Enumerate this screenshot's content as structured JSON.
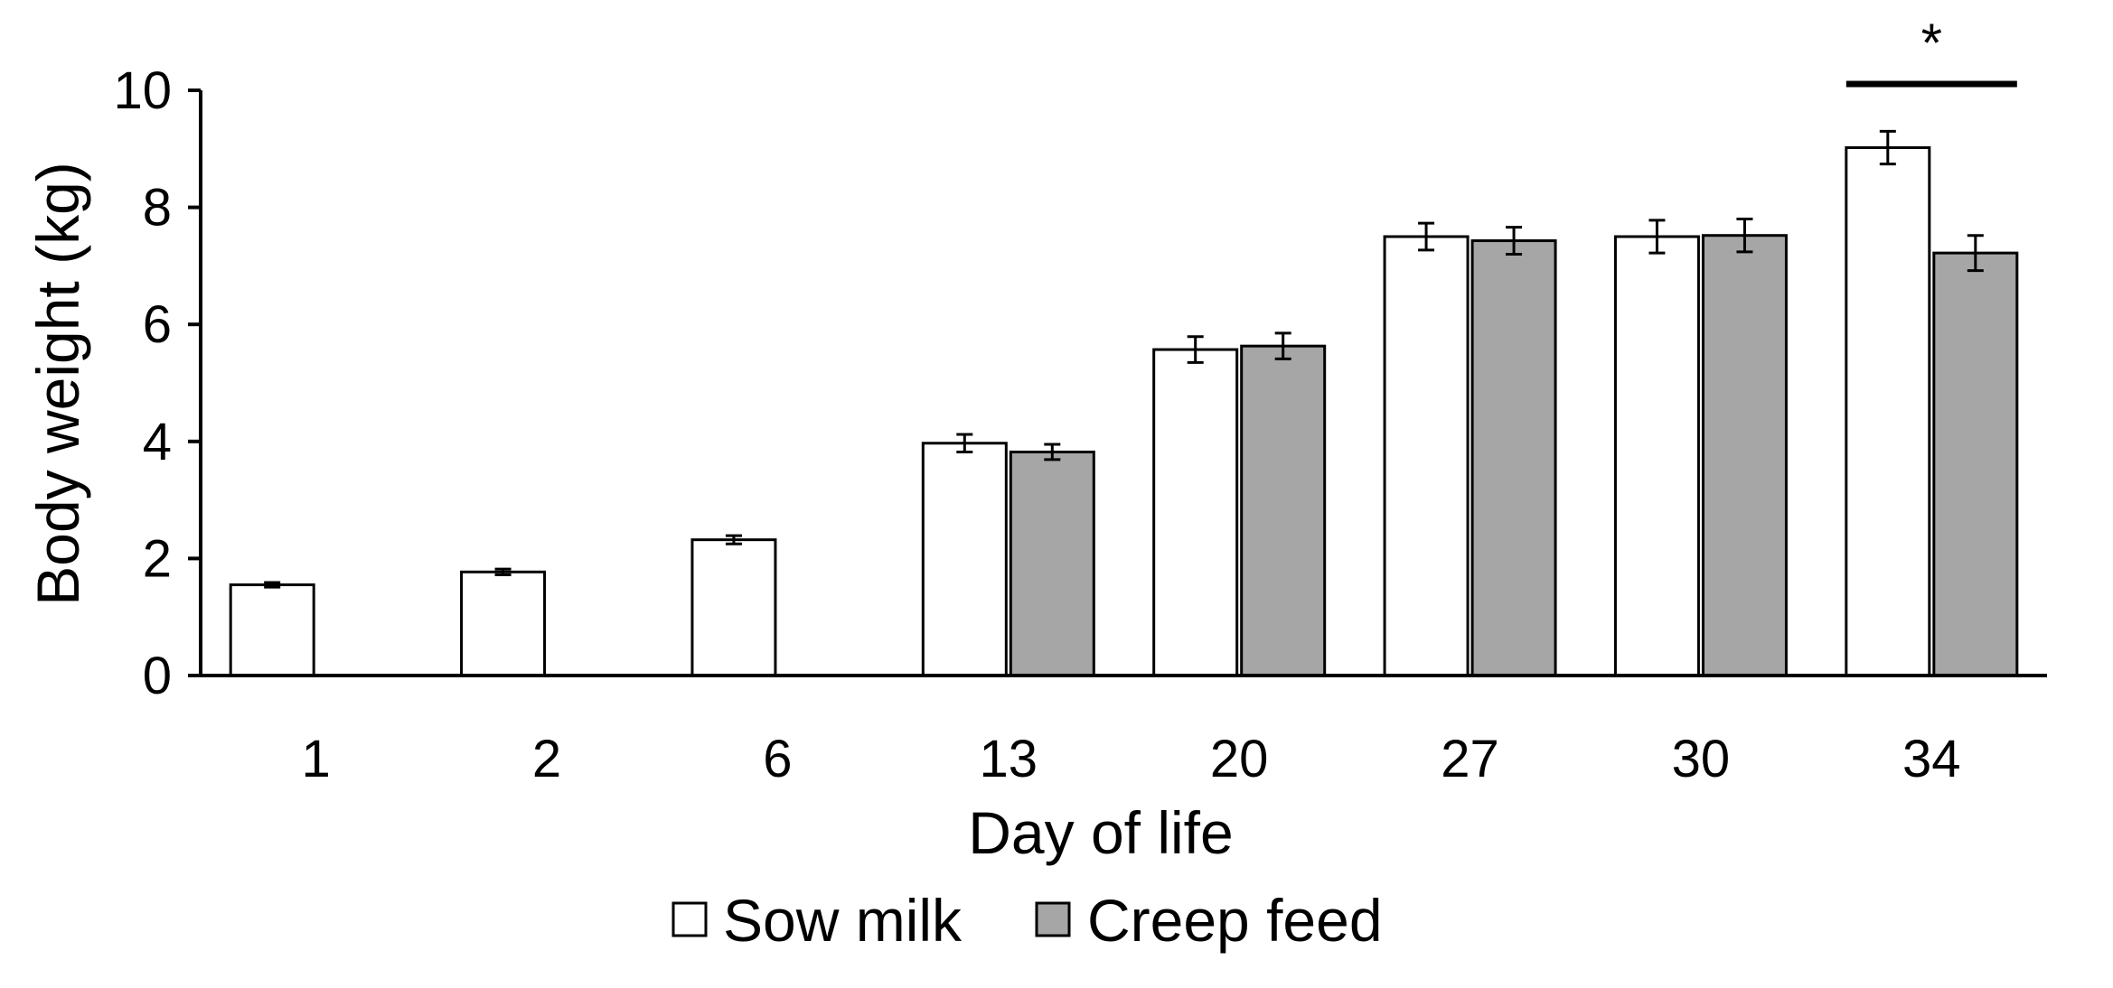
{
  "chart_data": {
    "type": "bar",
    "title": "",
    "xlabel": "Day of life",
    "ylabel": "Body weight (kg)",
    "ylim": [
      0,
      10
    ],
    "yticks": [
      "0",
      "2",
      "4",
      "6",
      "8",
      "10"
    ],
    "categories": [
      "1",
      "2",
      "6",
      "13",
      "20",
      "27",
      "30",
      "34"
    ],
    "series": [
      {
        "name": "Sow milk",
        "color": "#ffffff",
        "values": [
          1.55,
          1.77,
          2.32,
          3.97,
          5.57,
          7.5,
          7.5,
          9.02
        ],
        "errors": [
          0.04,
          0.05,
          0.07,
          0.15,
          0.22,
          0.23,
          0.28,
          0.28
        ]
      },
      {
        "name": "Creep feed",
        "color": "#a6a6a6",
        "values": [
          null,
          null,
          null,
          3.82,
          5.63,
          7.43,
          7.52,
          7.22
        ],
        "errors": [
          null,
          null,
          null,
          0.13,
          0.22,
          0.23,
          0.28,
          0.3
        ]
      }
    ],
    "grid": false,
    "legend": "bottom-center",
    "annotations": [
      {
        "text": "*",
        "category": "34",
        "meaning": "significance bracket over day 34"
      }
    ]
  }
}
